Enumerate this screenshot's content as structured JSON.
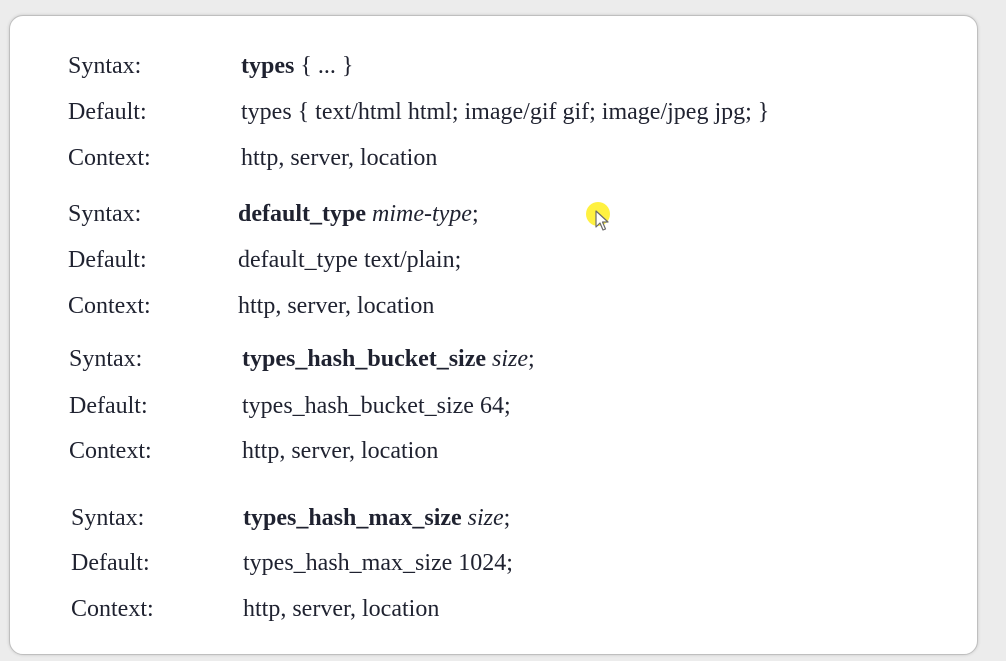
{
  "blocks": [
    {
      "syntax": {
        "label": "Syntax:",
        "keyword": "types",
        "arg": "",
        "tail": " { ... }"
      },
      "default": {
        "label": "Default:",
        "value": "types { text/html html; image/gif gif; image/jpeg jpg; }"
      },
      "context": {
        "label": "Context:",
        "value": "http, server, location"
      }
    },
    {
      "syntax": {
        "label": "Syntax:",
        "keyword": "default_type",
        "arg": " mime-type",
        "tail": ";"
      },
      "default": {
        "label": "Default:",
        "value": "default_type text/plain;"
      },
      "context": {
        "label": "Context:",
        "value": "http, server, location"
      }
    },
    {
      "syntax": {
        "label": "Syntax:",
        "keyword": "types_hash_bucket_size",
        "arg": " size",
        "tail": ";"
      },
      "default": {
        "label": "Default:",
        "value": "types_hash_bucket_size 64;"
      },
      "context": {
        "label": "Context:",
        "value": "http, server, location"
      }
    },
    {
      "syntax": {
        "label": "Syntax:",
        "keyword": "types_hash_max_size",
        "arg": " size",
        "tail": ";"
      },
      "default": {
        "label": "Default:",
        "value": "types_hash_max_size 1024;"
      },
      "context": {
        "label": "Context:",
        "value": "http, server, location"
      }
    }
  ],
  "cursor": {
    "icon": "mouse-pointer-icon",
    "highlight_color": "#ffec00"
  }
}
